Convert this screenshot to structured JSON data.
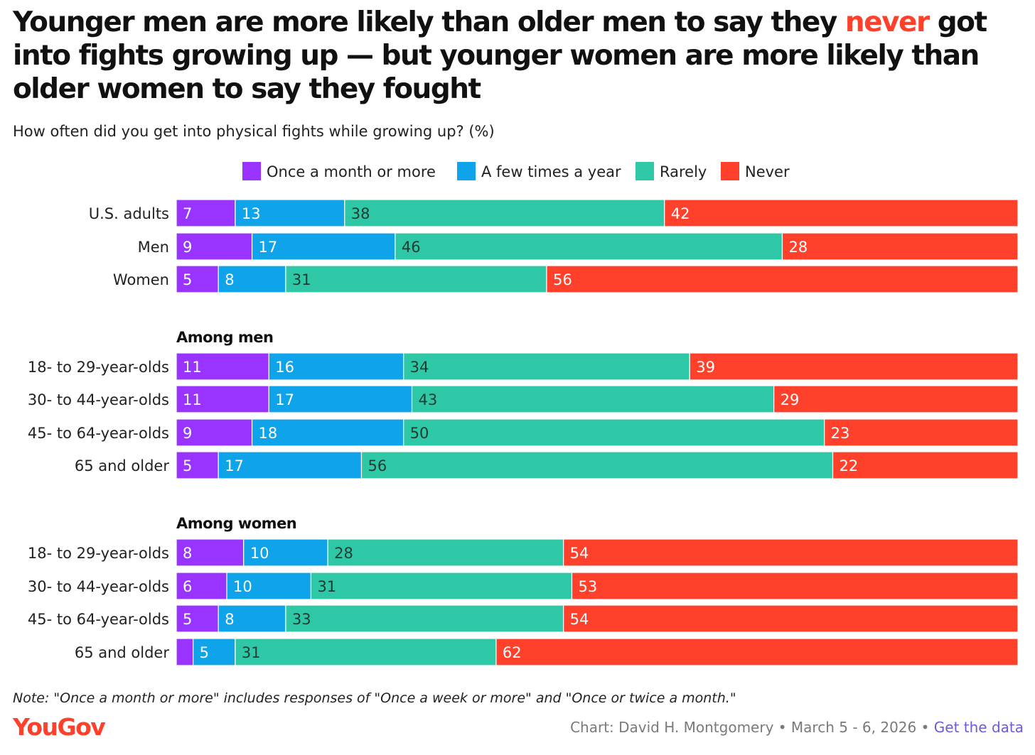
{
  "title": {
    "before": "Younger men are more likely than older men to say they ",
    "highlight": "never",
    "after": " got into fights growing up — but younger women are more likely than older women to say they fought"
  },
  "subtitle": "How often did you get into physical fights while growing up? (%)",
  "colors": {
    "once_a_month": "#9933ff",
    "few_times_a_year": "#0fa4ea",
    "rarely": "#2ec8a6",
    "never": "#ff412c",
    "highlight": "#ff412c",
    "link": "#6f5bd6"
  },
  "chart_data": {
    "type": "bar",
    "orientation": "horizontal",
    "stacked": true,
    "unit": "%",
    "series": [
      {
        "name": "Once a month or more",
        "color": "#9933ff"
      },
      {
        "name": "A few times a year",
        "color": "#0fa4ea"
      },
      {
        "name": "Rarely",
        "color": "#2ec8a6"
      },
      {
        "name": "Never",
        "color": "#ff412c"
      }
    ],
    "groups": [
      {
        "heading": "",
        "rows": [
          {
            "label": "U.S. adults",
            "values": [
              7,
              13,
              38,
              42
            ]
          },
          {
            "label": "Men",
            "values": [
              9,
              17,
              46,
              28
            ]
          },
          {
            "label": "Women",
            "values": [
              5,
              8,
              31,
              56
            ]
          }
        ]
      },
      {
        "heading": "Among men",
        "rows": [
          {
            "label": "18- to 29-year-olds",
            "values": [
              11,
              16,
              34,
              39
            ]
          },
          {
            "label": "30- to 44-year-olds",
            "values": [
              11,
              17,
              43,
              29
            ]
          },
          {
            "label": "45- to 64-year-olds",
            "values": [
              9,
              18,
              50,
              23
            ]
          },
          {
            "label": "65 and older",
            "values": [
              5,
              17,
              56,
              22
            ]
          }
        ]
      },
      {
        "heading": "Among women",
        "rows": [
          {
            "label": "18- to 29-year-olds",
            "values": [
              8,
              10,
              28,
              54
            ]
          },
          {
            "label": "30- to 44-year-olds",
            "values": [
              6,
              10,
              31,
              53
            ]
          },
          {
            "label": "45- to 64-year-olds",
            "values": [
              5,
              8,
              33,
              54
            ]
          },
          {
            "label": "65 and older",
            "values": [
              2,
              5,
              31,
              62
            ],
            "hide_labels": [
              true,
              false,
              false,
              false
            ]
          }
        ]
      }
    ],
    "legend_position": "top",
    "grid": false
  },
  "note": "Note: \"Once a month or more\" includes responses of \"Once a week or more\" and \"Once or twice a month.\"",
  "footer": {
    "logo": "YouGov",
    "credit": "Chart: David H. Montgomery • March 5 - 6, 2026 • ",
    "link": "Get the data"
  }
}
